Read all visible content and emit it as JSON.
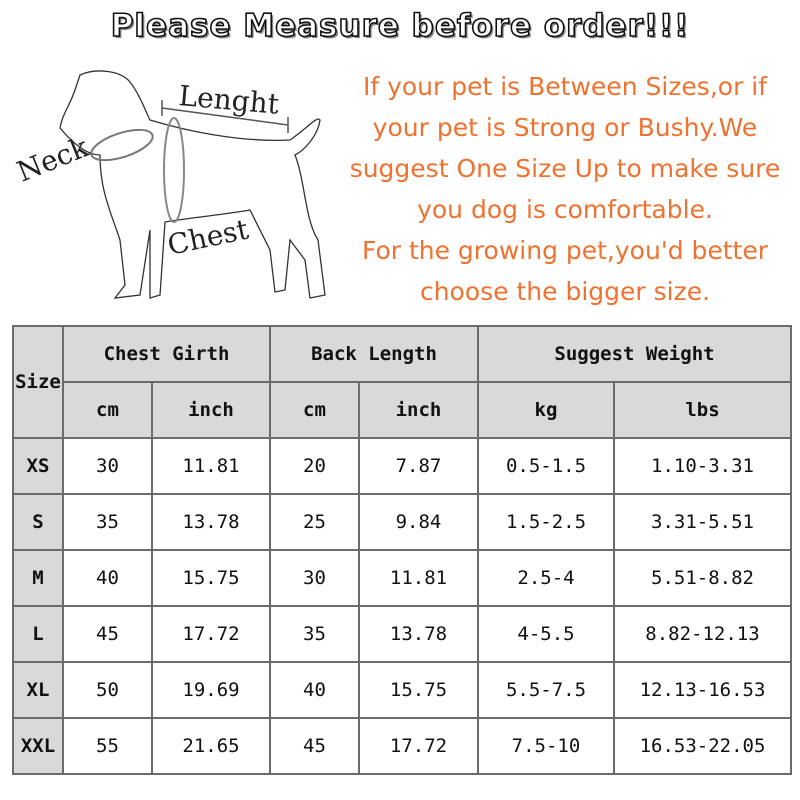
{
  "title": "Please Measure before order!!!",
  "diagram_labels": {
    "length": "Lenght",
    "neck": "Neck",
    "chest": "Chest"
  },
  "note_lines": [
    "If your pet is Between Sizes,or if",
    "your pet is Strong or Bushy.We",
    "suggest One Size Up to make sure",
    "you dog is comfortable.",
    "For the growing pet,you'd better",
    "choose the bigger size."
  ],
  "colors": {
    "note": "#f0722f",
    "header_bg": "#d9d9d9",
    "border": "#6b6b6b"
  },
  "table": {
    "size_header": "Size",
    "groups": [
      "Chest Girth",
      "Back Length",
      "Suggest Weight"
    ],
    "units": [
      "cm",
      "inch",
      "cm",
      "inch",
      "kg",
      "lbs"
    ],
    "rows": [
      {
        "size": "XS",
        "cells": [
          "30",
          "11.81",
          "20",
          "7.87",
          "0.5-1.5",
          "1.10-3.31"
        ]
      },
      {
        "size": "S",
        "cells": [
          "35",
          "13.78",
          "25",
          "9.84",
          "1.5-2.5",
          "3.31-5.51"
        ]
      },
      {
        "size": "M",
        "cells": [
          "40",
          "15.75",
          "30",
          "11.81",
          "2.5-4",
          "5.51-8.82"
        ]
      },
      {
        "size": "L",
        "cells": [
          "45",
          "17.72",
          "35",
          "13.78",
          "4-5.5",
          "8.82-12.13"
        ]
      },
      {
        "size": "XL",
        "cells": [
          "50",
          "19.69",
          "40",
          "15.75",
          "5.5-7.5",
          "12.13-16.53"
        ]
      },
      {
        "size": "XXL",
        "cells": [
          "55",
          "21.65",
          "45",
          "17.72",
          "7.5-10",
          "16.53-22.05"
        ]
      }
    ]
  }
}
